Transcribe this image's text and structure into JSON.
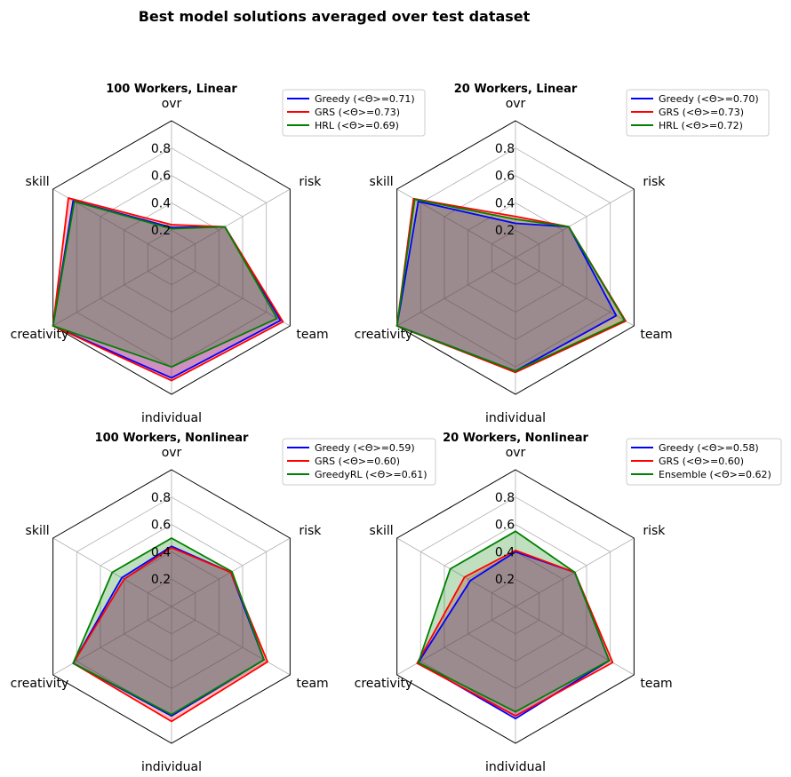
{
  "figure": {
    "title": "Best model solutions averaged over test dataset"
  },
  "chart_data": [
    {
      "type": "radar",
      "title": "100 Workers, Linear",
      "axes": [
        "ovr",
        "risk",
        "team",
        "individual",
        "creativity",
        "skill"
      ],
      "rlim": [
        0,
        1
      ],
      "rticks": [
        "0.2",
        "0.4",
        "0.6",
        "0.8"
      ],
      "grid": true,
      "legend_position": "top-right",
      "series": [
        {
          "name": "Greedy (<Θ>=0.71)",
          "color": "#0000ff",
          "values": [
            0.22,
            0.45,
            0.92,
            0.88,
            1.0,
            0.83
          ]
        },
        {
          "name": "GRS (<Θ>=0.73)",
          "color": "#ff0000",
          "values": [
            0.24,
            0.45,
            0.94,
            0.9,
            1.0,
            0.87
          ]
        },
        {
          "name": "HRL (<Θ>=0.69)",
          "color": "#008000",
          "values": [
            0.21,
            0.45,
            0.89,
            0.8,
            1.0,
            0.82
          ]
        }
      ]
    },
    {
      "type": "radar",
      "title": "20 Workers, Linear",
      "axes": [
        "ovr",
        "risk",
        "team",
        "individual",
        "creativity",
        "skill"
      ],
      "rlim": [
        0,
        1
      ],
      "rticks": [
        "0.2",
        "0.4",
        "0.6",
        "0.8"
      ],
      "grid": true,
      "legend_position": "top-right",
      "series": [
        {
          "name": "Greedy (<Θ>=0.70)",
          "color": "#0000ff",
          "values": [
            0.25,
            0.45,
            0.85,
            0.83,
            1.0,
            0.82
          ]
        },
        {
          "name": "GRS (<Θ>=0.73)",
          "color": "#ff0000",
          "values": [
            0.3,
            0.45,
            0.93,
            0.84,
            1.0,
            0.86
          ]
        },
        {
          "name": "HRL (<Θ>=0.72)",
          "color": "#008000",
          "values": [
            0.28,
            0.45,
            0.92,
            0.83,
            1.0,
            0.85
          ]
        }
      ]
    },
    {
      "type": "radar",
      "title": "100 Workers, Nonlinear",
      "axes": [
        "ovr",
        "risk",
        "team",
        "individual",
        "creativity",
        "skill"
      ],
      "rlim": [
        0,
        1
      ],
      "rticks": [
        "0.2",
        "0.4",
        "0.6",
        "0.8"
      ],
      "grid": true,
      "legend_position": "top-right",
      "series": [
        {
          "name": "Greedy (<Θ>=0.59)",
          "color": "#0000ff",
          "values": [
            0.44,
            0.5,
            0.78,
            0.8,
            0.83,
            0.42
          ]
        },
        {
          "name": "GRS (<Θ>=0.60)",
          "color": "#ff0000",
          "values": [
            0.43,
            0.5,
            0.81,
            0.84,
            0.83,
            0.4
          ]
        },
        {
          "name": "GreedyRL (<Θ>=0.61)",
          "color": "#008000",
          "values": [
            0.5,
            0.51,
            0.78,
            0.79,
            0.83,
            0.5
          ]
        }
      ]
    },
    {
      "type": "radar",
      "title": "20 Workers, Nonlinear",
      "axes": [
        "ovr",
        "risk",
        "team",
        "individual",
        "creativity",
        "skill"
      ],
      "rlim": [
        0,
        1
      ],
      "rticks": [
        "0.2",
        "0.4",
        "0.6",
        "0.8"
      ],
      "grid": true,
      "legend_position": "top-right",
      "series": [
        {
          "name": "Greedy (<Θ>=0.58)",
          "color": "#0000ff",
          "values": [
            0.4,
            0.5,
            0.79,
            0.82,
            0.82,
            0.38
          ]
        },
        {
          "name": "GRS (<Θ>=0.60)",
          "color": "#ff0000",
          "values": [
            0.41,
            0.5,
            0.82,
            0.8,
            0.83,
            0.43
          ]
        },
        {
          "name": "Ensemble (<Θ>=0.62)",
          "color": "#008000",
          "values": [
            0.55,
            0.5,
            0.79,
            0.77,
            0.82,
            0.55
          ]
        }
      ]
    }
  ]
}
